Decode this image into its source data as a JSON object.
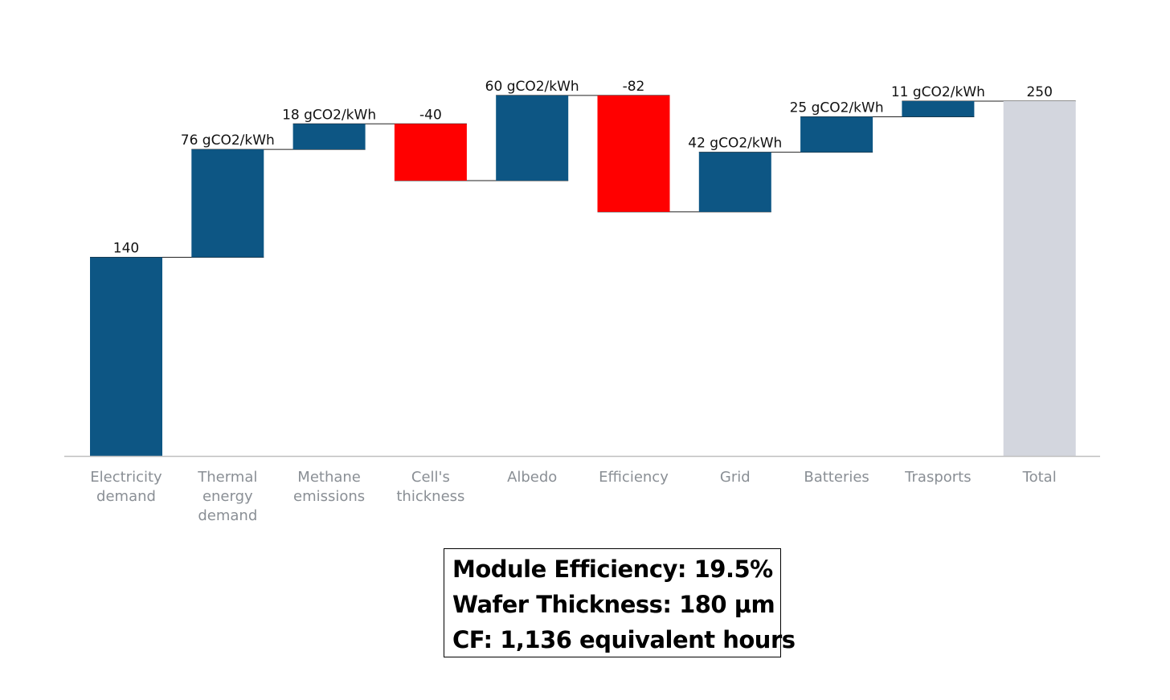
{
  "chart_data": {
    "type": "bar",
    "subtype": "waterfall",
    "categories": [
      [
        "Electricity",
        "demand"
      ],
      [
        "Thermal",
        "energy",
        "demand"
      ],
      [
        "Methane",
        "emissions"
      ],
      [
        "Cell's",
        "thickness"
      ],
      [
        "Albedo"
      ],
      [
        "Efficiency"
      ],
      [
        "Grid"
      ],
      [
        "Batteries"
      ],
      [
        "Trasports"
      ],
      [
        "Total"
      ]
    ],
    "values": [
      140,
      76,
      18,
      -40,
      60,
      -82,
      42,
      25,
      11,
      250
    ],
    "bar_kinds": [
      "base",
      "delta",
      "delta",
      "delta",
      "delta",
      "delta",
      "delta",
      "delta",
      "delta",
      "total"
    ],
    "data_labels": [
      "140",
      "76 gCO2/kWh",
      "18 gCO2/kWh",
      "-40",
      "60 gCO2/kWh",
      "-82",
      "42 gCO2/kWh",
      "25 gCO2/kWh",
      "11 gCO2/kWh",
      "250"
    ],
    "ylim": [
      0,
      250
    ],
    "grid": false,
    "colors": {
      "increase": "#0d5684",
      "decrease": "#ff0000",
      "total": "#d3d6de",
      "baseline": "#bfbfbf",
      "connector": "#222222"
    }
  },
  "note": {
    "lines": [
      "Module Efficiency: 19.5%",
      "Wafer Thickness: 180 µm",
      "CF: 1,136 equivalent hours"
    ]
  }
}
